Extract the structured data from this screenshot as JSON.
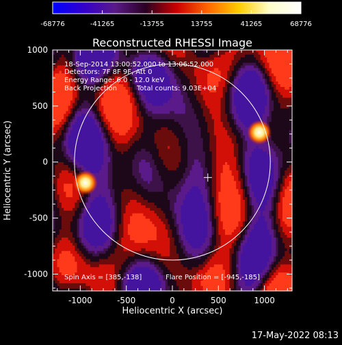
{
  "colorbar": {
    "ticks": [
      -68776,
      -41265,
      -13755,
      13755,
      41265,
      68776
    ],
    "tick_labels": [
      "-68776",
      "-41265",
      "-13755",
      "13755",
      "41265",
      "68776"
    ],
    "colors": [
      "#0000ff",
      "#3300cc",
      "#5a1a8a",
      "#2a0022",
      "#cc0000",
      "#ff6600",
      "#ffcc00",
      "#ffffcc",
      "#ffffff"
    ]
  },
  "chart_data": {
    "type": "heatmap",
    "title": "Reconstructed RHESSI Image",
    "xlabel": "Heliocentric X (arcsec)",
    "ylabel": "Heliocentric Y (arcsec)",
    "xlim": [
      -1300,
      1300
    ],
    "ylim": [
      -1150,
      1000
    ],
    "x_ticks": [
      -1000,
      -500,
      0,
      500,
      1000
    ],
    "x_tick_labels": [
      "-1000",
      "-500",
      "0",
      "500",
      "1000"
    ],
    "y_ticks": [
      -1000,
      -500,
      0,
      500,
      1000
    ],
    "y_tick_labels": [
      "-1000",
      "-500",
      "0",
      "500",
      "1000"
    ],
    "annotations": [
      "18-Sep-2014 13:00:52.000 to 13:06:52.000",
      "Detectors: 7F 8F 9F, Att 0",
      "Energy Range: 6.0 - 12.0 keV",
      "Back Projection",
      "Total counts: 9.03E+04"
    ],
    "footer_left": "Spin Axis = [385,-138]",
    "footer_right": "Flare Position = [-945,-185]",
    "sources": [
      {
        "x": -945,
        "y": -185
      },
      {
        "x": 945,
        "y": 265
      }
    ],
    "spin_axis": {
      "x": 385,
      "y": -138
    },
    "solar_disk": {
      "center_x": 0,
      "center_y": 0,
      "radius": 960
    }
  },
  "timestamp": "17-May-2022 08:13"
}
